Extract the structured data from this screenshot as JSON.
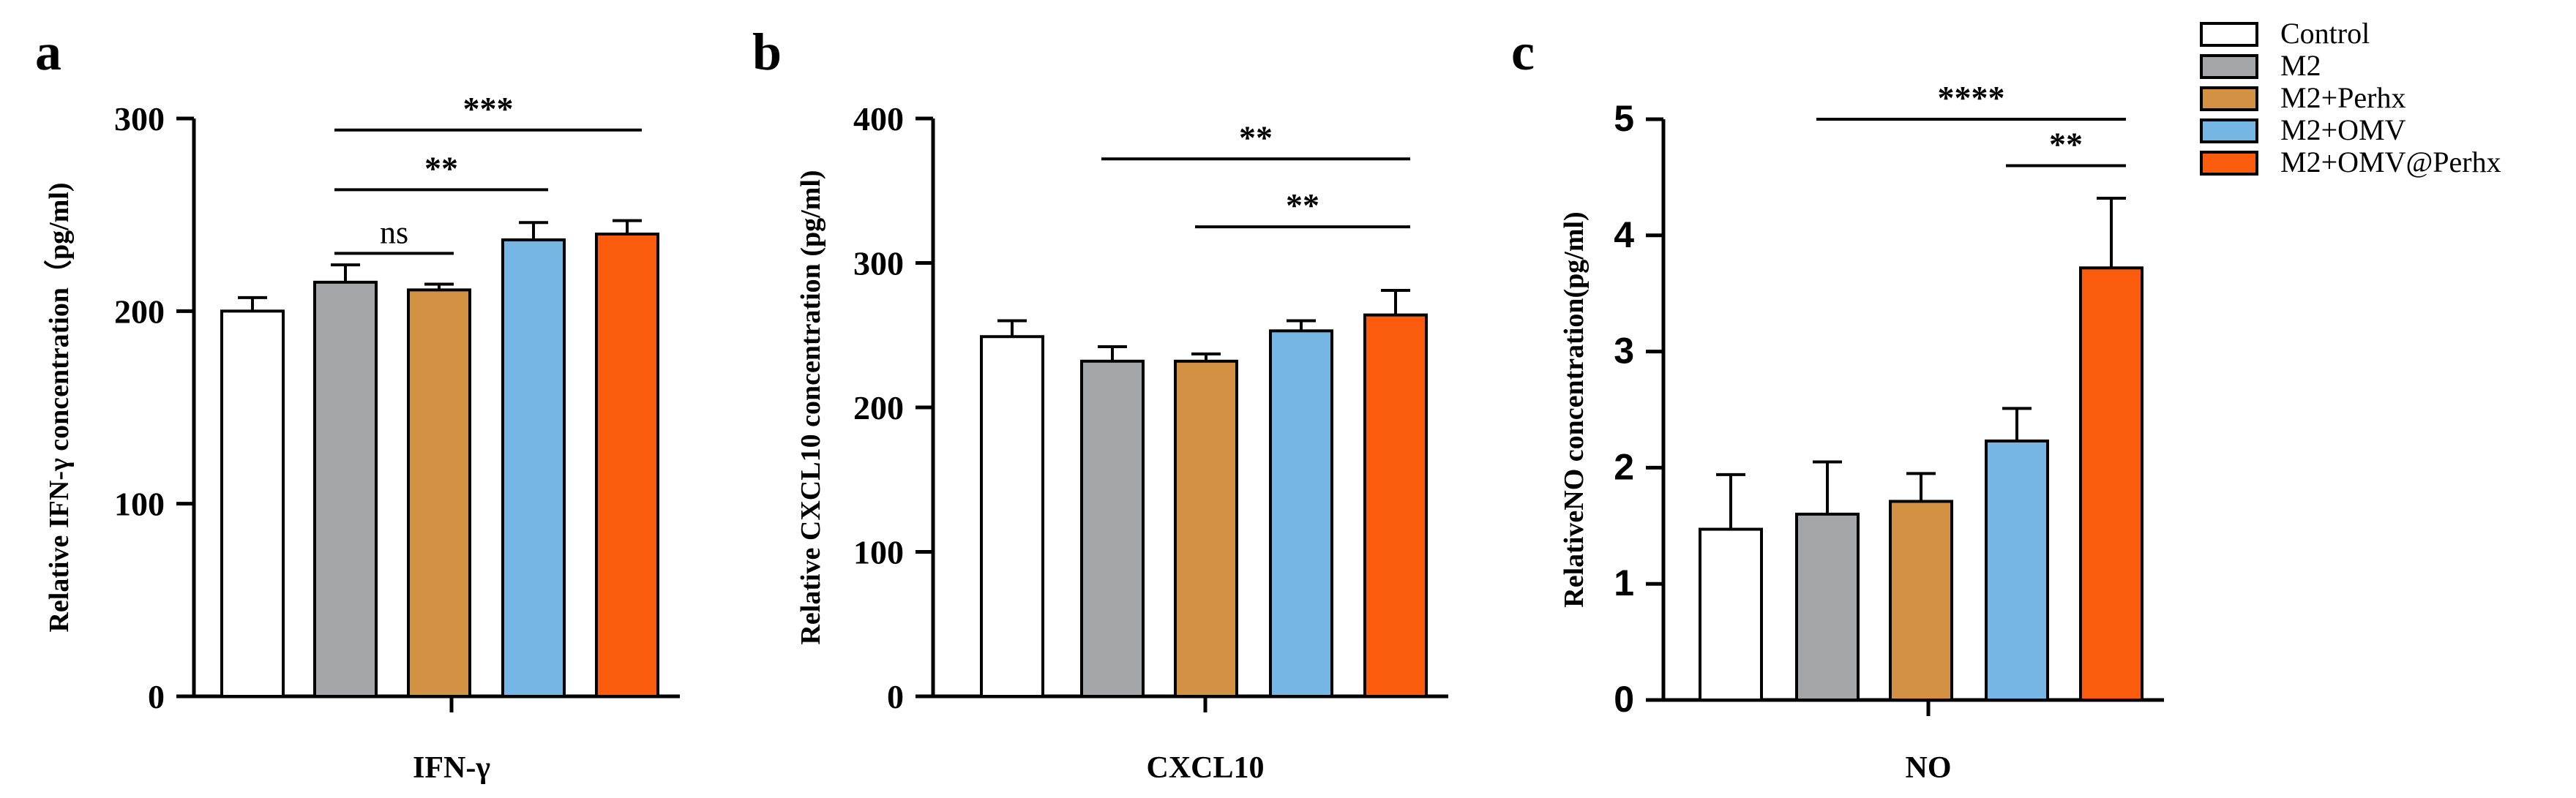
{
  "colors": {
    "Control": "#ffffff",
    "M2": "#a4a5a9",
    "M2+Perhx": "#d39143",
    "M2+OMV": "#76b6e4",
    "M2+OMV@Perhx": "#fb5b0c"
  },
  "legend": [
    "Control",
    "M2",
    "M2+Perhx",
    "M2+OMV",
    "M2+OMV@Perhx"
  ],
  "chart_data": [
    {
      "type": "bar",
      "panel": "a",
      "title": "",
      "xlabel": "IFN-γ",
      "ylabel": "Relative IFN-γ concentration（pg/ml)",
      "ylim": [
        0,
        300
      ],
      "yticks": [
        0,
        100,
        200,
        300
      ],
      "categories": [
        "Control",
        "M2",
        "M2+Perhx",
        "M2+OMV",
        "M2+OMV@Perhx"
      ],
      "values": [
        200,
        215,
        211,
        237,
        240
      ],
      "errors": [
        7,
        9,
        3,
        9,
        7
      ],
      "significance": [
        {
          "from": 1,
          "to": 2,
          "label": "ns",
          "y": 230
        },
        {
          "from": 1,
          "to": 3,
          "label": "**",
          "y": 263
        },
        {
          "from": 1,
          "to": 4,
          "label": "***",
          "y": 294
        }
      ]
    },
    {
      "type": "bar",
      "panel": "b",
      "title": "",
      "xlabel": "CXCL10",
      "ylabel": "Relative CXCL10 concentration (pg/ml)",
      "ylim": [
        0,
        400
      ],
      "yticks": [
        0,
        100,
        200,
        300,
        400
      ],
      "categories": [
        "Control",
        "M2",
        "M2+Perhx",
        "M2+OMV",
        "M2+OMV@Perhx"
      ],
      "values": [
        249,
        232,
        232,
        253,
        264
      ],
      "errors": [
        11,
        10,
        5,
        7,
        17
      ],
      "significance": [
        {
          "from": 2,
          "to": 4,
          "label": "**",
          "y": 325
        },
        {
          "from": 1,
          "to": 4,
          "label": "**",
          "y": 372
        }
      ]
    },
    {
      "type": "bar",
      "panel": "c",
      "title": "",
      "xlabel": "NO",
      "ylabel": "RelativeNO concentration(pg/ml)",
      "ylim": [
        0,
        5
      ],
      "yticks": [
        0,
        1,
        2,
        3,
        4,
        5
      ],
      "categories": [
        "Control",
        "M2",
        "M2+Perhx",
        "M2+OMV",
        "M2+OMV@Perhx"
      ],
      "values": [
        1.47,
        1.6,
        1.71,
        2.23,
        3.72
      ],
      "errors": [
        0.47,
        0.45,
        0.24,
        0.28,
        0.6
      ],
      "significance": [
        {
          "from": 3,
          "to": 4,
          "label": "**",
          "y": 4.6
        },
        {
          "from": 1,
          "to": 4,
          "label": "****",
          "y": 5.0
        }
      ]
    }
  ]
}
